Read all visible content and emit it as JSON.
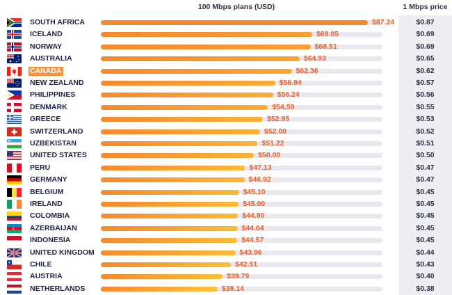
{
  "headers": {
    "main": "100 Mbps plans (USD)",
    "price": "1 Mbps price"
  },
  "colors": {
    "bar_dark": "#f5892f",
    "bar_light": "#fcc23b",
    "value_text": "#e8612c",
    "highlight": "#f7913a"
  },
  "highlighted_country": "CANADA",
  "chart_data": {
    "type": "bar",
    "orientation": "horizontal",
    "title": "100 Mbps plans (USD)",
    "xlim": [
      0,
      92
    ],
    "categories": [
      "SOUTH AFRICA",
      "ICELAND",
      "NORWAY",
      "AUSTRALIA",
      "CANADA",
      "NEW ZEALAND",
      "PHILIPPINES",
      "DENMARK",
      "GREECE",
      "SWITZERLAND",
      "UZBEKISTAN",
      "UNITED STATES",
      "PERU",
      "GERMANY",
      "BELGIUM",
      "IRELAND",
      "COLOMBIA",
      "AZERBAIJAN",
      "INDONESIA",
      "UNITED KINGDOM",
      "CHILE",
      "AUSTRIA",
      "NETHERLANDS"
    ],
    "values": [
      87.24,
      69.05,
      68.51,
      64.93,
      62.36,
      56.94,
      56.24,
      54.59,
      52.95,
      52.0,
      51.22,
      50.0,
      47.13,
      46.92,
      45.1,
      45.0,
      44.8,
      44.64,
      44.57,
      43.96,
      42.51,
      39.79,
      38.14
    ],
    "value_labels": [
      "$87.24",
      "$69.05",
      "$68.51",
      "$64.93",
      "$62.36",
      "$56.94",
      "$56.24",
      "$54.59",
      "$52.95",
      "$52.00",
      "$51.22",
      "$50.00",
      "$47.13",
      "$46.92",
      "$45.10",
      "$45.00",
      "$44.80",
      "$44.64",
      "$44.57",
      "$43.96",
      "$42.51",
      "$39.79",
      "$38.14"
    ],
    "secondary_column": {
      "name": "1 Mbps price",
      "values": [
        "$0.87",
        "$0.69",
        "$0.69",
        "$0.65",
        "$0.62",
        "$0.57",
        "$0.56",
        "$0.55",
        "$0.53",
        "$0.52",
        "$0.51",
        "$0.50",
        "$0.47",
        "$0.47",
        "$0.45",
        "$0.45",
        "$0.45",
        "$0.45",
        "$0.45",
        "$0.44",
        "$0.43",
        "$0.40",
        "$0.38"
      ]
    },
    "flags": [
      "south-africa-flag",
      "iceland-flag",
      "norway-flag",
      "australia-flag",
      "canada-flag",
      "new-zealand-flag",
      "philippines-flag",
      "denmark-flag",
      "greece-flag",
      "switzerland-flag",
      "uzbekistan-flag",
      "united-states-flag",
      "peru-flag",
      "germany-flag",
      "belgium-flag",
      "ireland-flag",
      "colombia-flag",
      "azerbaijan-flag",
      "indonesia-flag",
      "united-kingdom-flag",
      "chile-flag",
      "austria-flag",
      "netherlands-flag"
    ]
  }
}
